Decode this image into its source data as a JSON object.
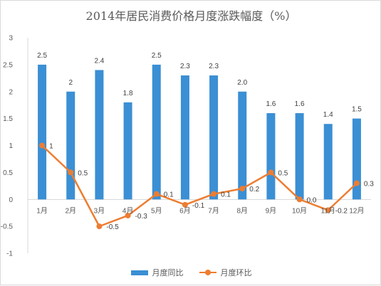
{
  "chart_data": {
    "type": "bar",
    "title": "2014年居民消费价格月度涨跌幅度（%）",
    "categories": [
      "1月",
      "2月",
      "3月",
      "4月",
      "5月",
      "6月",
      "7月",
      "8月",
      "9月",
      "10月",
      "11月",
      "12月"
    ],
    "y_ticks": [
      "3",
      "2.5",
      "2",
      "1.5",
      "1",
      "0.5",
      "0",
      "-0.5",
      "-1"
    ],
    "ylim": [
      -1,
      3
    ],
    "grid": false,
    "legend_position": "bottom",
    "series": [
      {
        "name": "月度同比",
        "type": "bar",
        "color": "#3b8fd4",
        "values": [
          2.5,
          2.0,
          2.4,
          1.8,
          2.5,
          2.3,
          2.3,
          2.0,
          1.6,
          1.6,
          1.4,
          1.5
        ],
        "labels": [
          "2.5",
          "2",
          "2.4",
          "1.8",
          "2.5",
          "2.3",
          "2.3",
          "2.0",
          "1.6",
          "1.6",
          "1.4",
          "1.5"
        ]
      },
      {
        "name": "月度环比",
        "type": "line",
        "color": "#ed7d31",
        "values": [
          1.0,
          0.5,
          -0.5,
          -0.3,
          0.1,
          -0.1,
          0.1,
          0.2,
          0.5,
          0.0,
          -0.2,
          0.3
        ],
        "labels": [
          "1",
          "0.5",
          "-0.5",
          "-0.3",
          "0.1",
          "-0.1",
          "0.1",
          "0.2",
          "0.5",
          "0.0",
          "-0.2",
          "0.3"
        ]
      }
    ]
  }
}
